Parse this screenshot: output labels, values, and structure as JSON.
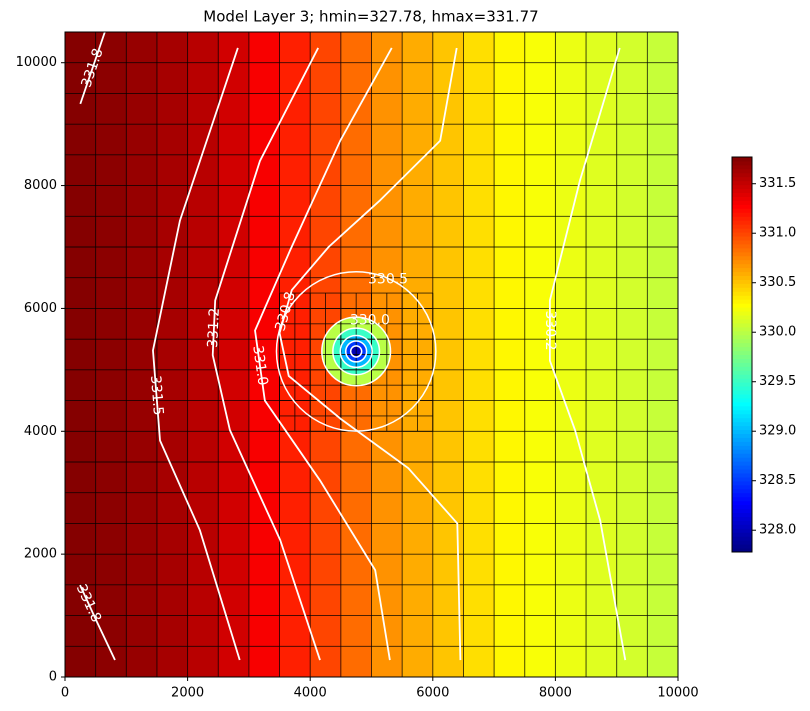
{
  "chart_data": {
    "type": "heatmap",
    "title": "Model Layer 3; hmin=327.78, hmax=331.77",
    "colormap": "jet",
    "clim": [
      327.78,
      331.77
    ],
    "xlim": [
      0,
      10000
    ],
    "ylim": [
      0,
      10500
    ],
    "xticks": [
      0,
      2000,
      4000,
      6000,
      8000,
      10000
    ],
    "yticks": [
      0,
      2000,
      4000,
      6000,
      8000,
      10000
    ],
    "column_values": [
      331.75,
      331.72,
      331.68,
      331.62,
      331.55,
      331.45,
      331.3,
      331.15,
      331.0,
      330.85,
      330.7,
      330.6,
      330.5,
      330.4,
      330.3,
      330.25,
      330.2,
      330.15,
      330.1,
      330.05
    ],
    "refined_area": {
      "x": [
        3500,
        6000
      ],
      "y": [
        4000,
        6250
      ]
    },
    "contours": [
      {
        "level": 331.8,
        "label": "331.8",
        "x": [
          250,
          650
        ],
        "y": [
          9330,
          10500
        ]
      },
      {
        "level": 331.8,
        "label": "331.8",
        "x": [
          245,
          520,
          815
        ],
        "y": [
          1496,
          900,
          276
        ]
      },
      {
        "level": 331.5,
        "label": "331.5",
        "x": [
          2820,
          1875,
          1435,
          1550,
          2200,
          2850
        ],
        "y": [
          10240,
          7430,
          5317,
          3850,
          2390,
          276
        ]
      },
      {
        "level": 331.2,
        "label": "331.2",
        "x": [
          4130,
          3180,
          2450,
          2410,
          2690,
          3510,
          4160
        ],
        "y": [
          10240,
          8400,
          6130,
          5240,
          4020,
          2230,
          276
        ]
      },
      {
        "level": 331.0,
        "label": "331.0",
        "x": [
          5330,
          4490,
          3670,
          3100,
          3260,
          4160,
          5060,
          5300
        ],
        "y": [
          10240,
          8730,
          6940,
          5640,
          4500,
          3200,
          1740,
          276
        ]
      },
      {
        "level": 330.8,
        "label": "330.8",
        "x": [
          6390,
          6120,
          5140,
          4300,
          3700,
          3500,
          3650,
          4500,
          5600,
          6400,
          6450
        ],
        "y": [
          10240,
          8730,
          7760,
          7000,
          6300,
          5600,
          4900,
          4200,
          3400,
          2500,
          276
        ]
      },
      {
        "level": 330.2,
        "label": "330.2",
        "x": [
          9050,
          8400,
          7910,
          7910,
          8320,
          8730,
          9140
        ],
        "y": [
          10240,
          8080,
          6130,
          5150,
          4020,
          2550,
          276
        ]
      }
    ],
    "well": {
      "x": 4750,
      "y": 5300
    },
    "rings": [
      {
        "level": 330.5,
        "label": "330.5",
        "r": 1300
      },
      {
        "level": 330.0,
        "label": "330.0",
        "r": 560
      },
      {
        "level": 329.5,
        "r": 380
      },
      {
        "level": 329.0,
        "r": 260
      },
      {
        "level": 328.5,
        "r": 170
      },
      {
        "level": 328.0,
        "r": 90
      }
    ],
    "colorbar_ticks": [
      {
        "value": 328.0,
        "label": "328.0"
      },
      {
        "value": 328.5,
        "label": "328.5"
      },
      {
        "value": 329.0,
        "label": "329.0"
      },
      {
        "value": 329.5,
        "label": "329.5"
      },
      {
        "value": 330.0,
        "label": "330.0"
      },
      {
        "value": 330.5,
        "label": "330.5"
      },
      {
        "value": 331.0,
        "label": "331.0"
      },
      {
        "value": 331.5,
        "label": "331.5"
      }
    ]
  }
}
